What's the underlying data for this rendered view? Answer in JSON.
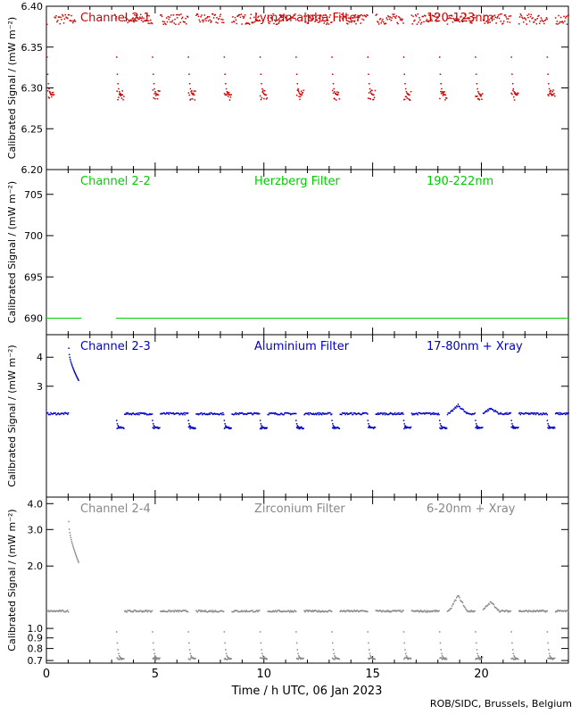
{
  "footer": "ROB/SIDC, Brussels, Belgium",
  "colors": {
    "axis": "#000000",
    "ch1": "#cc0000",
    "ch2": "#00cc00",
    "ch3": "#0000cc",
    "ch4": "#888888"
  },
  "chart_data": [
    {
      "type": "scatter",
      "panel": "top",
      "labels": [
        "Channel 2-1",
        "Lyman-alpha Filter",
        "120-123nm"
      ],
      "ylabel": "Calibrated Signal / (mW m⁻²)",
      "y_scale": "linear",
      "ylim": [
        6.2,
        6.4
      ],
      "yticks": [
        6.2,
        6.25,
        6.3,
        6.35,
        6.4
      ],
      "ytick_labels": [
        "6.20",
        "6.25",
        "6.30",
        "6.35",
        "6.40"
      ],
      "color": "#cc0000",
      "baseline": 6.385,
      "dip_value": 6.292,
      "dip_times": [
        0.0,
        3.2,
        4.85,
        6.5,
        8.15,
        9.8,
        11.45,
        13.1,
        14.75,
        16.4,
        18.05,
        19.7,
        21.35,
        23.0
      ],
      "gap": [
        1.3,
        3.1
      ]
    },
    {
      "type": "line",
      "panel": "middle-top",
      "labels": [
        "Channel 2-2",
        "Herzberg Filter",
        "190-222nm"
      ],
      "ylabel": "Calibrated Signal / (mW m⁻²)",
      "y_scale": "linear",
      "ylim": [
        688,
        708
      ],
      "yticks": [
        690,
        695,
        700,
        705
      ],
      "ytick_labels": [
        "690",
        "695",
        "700",
        "705"
      ],
      "color": "#00cc00",
      "segments": [
        {
          "x": [
            0.0,
            1.6
          ],
          "y": 690
        },
        {
          "x": [
            3.2,
            24.0
          ],
          "y": 690
        }
      ]
    },
    {
      "type": "scatter",
      "panel": "middle-bottom",
      "labels": [
        "Channel 2-3",
        "Aluminium Filter",
        "17-80nm + Xray"
      ],
      "ylabel": "Calibrated Signal / (mW m⁻²)",
      "y_scale": "log",
      "ylim": [
        1.0,
        5.0
      ],
      "yticks": [
        3,
        4
      ],
      "ytick_labels": [
        "3",
        "4"
      ],
      "color": "#0000cc",
      "baseline": 2.3,
      "dip_value": 2.0,
      "spike": {
        "x_start": 1.0,
        "y_start": 4.4,
        "x_end": 1.45,
        "y_end": 3.2
      },
      "bumps": [
        {
          "x": 18.9,
          "y": 2.5
        },
        {
          "x": 20.4,
          "y": 2.42
        }
      ],
      "dip_times": [
        3.2,
        4.85,
        6.5,
        8.15,
        9.8,
        11.45,
        13.1,
        14.75,
        16.4,
        18.05,
        19.7,
        21.35,
        23.0
      ],
      "gap": [
        1.6,
        3.2
      ]
    },
    {
      "type": "scatter",
      "panel": "bottom",
      "labels": [
        "Channel 2-4",
        "Zirconium Filter",
        "6-20nm + Xray"
      ],
      "ylabel": "Calibrated Signal / (mW m⁻²)",
      "xlabel": "Time / h UTC, 06 Jan 2023",
      "y_scale": "log",
      "ylim": [
        0.68,
        4.3
      ],
      "yticks": [
        0.7,
        0.8,
        0.9,
        1.0,
        2.0,
        3.0,
        4.0
      ],
      "ytick_labels": [
        "0.7",
        "0.8",
        "0.9",
        "1.0",
        "2.0",
        "3.0",
        "4.0"
      ],
      "xlim": [
        0,
        24
      ],
      "xticks": [
        0,
        5,
        10,
        15,
        20
      ],
      "xtick_labels": [
        "0",
        "5",
        "10",
        "15",
        "20"
      ],
      "color": "#888888",
      "baseline": 1.22,
      "dip_value": 0.72,
      "spike": {
        "x_start": 1.0,
        "y_start": 3.3,
        "x_end": 1.45,
        "y_end": 2.1
      },
      "bumps": [
        {
          "x": 18.9,
          "y": 1.45
        },
        {
          "x": 20.4,
          "y": 1.35
        }
      ],
      "dip_times": [
        3.2,
        4.85,
        6.5,
        8.15,
        9.8,
        11.45,
        13.1,
        14.75,
        16.4,
        18.05,
        19.7,
        21.35,
        23.0
      ],
      "gap": [
        1.6,
        3.2
      ]
    }
  ]
}
